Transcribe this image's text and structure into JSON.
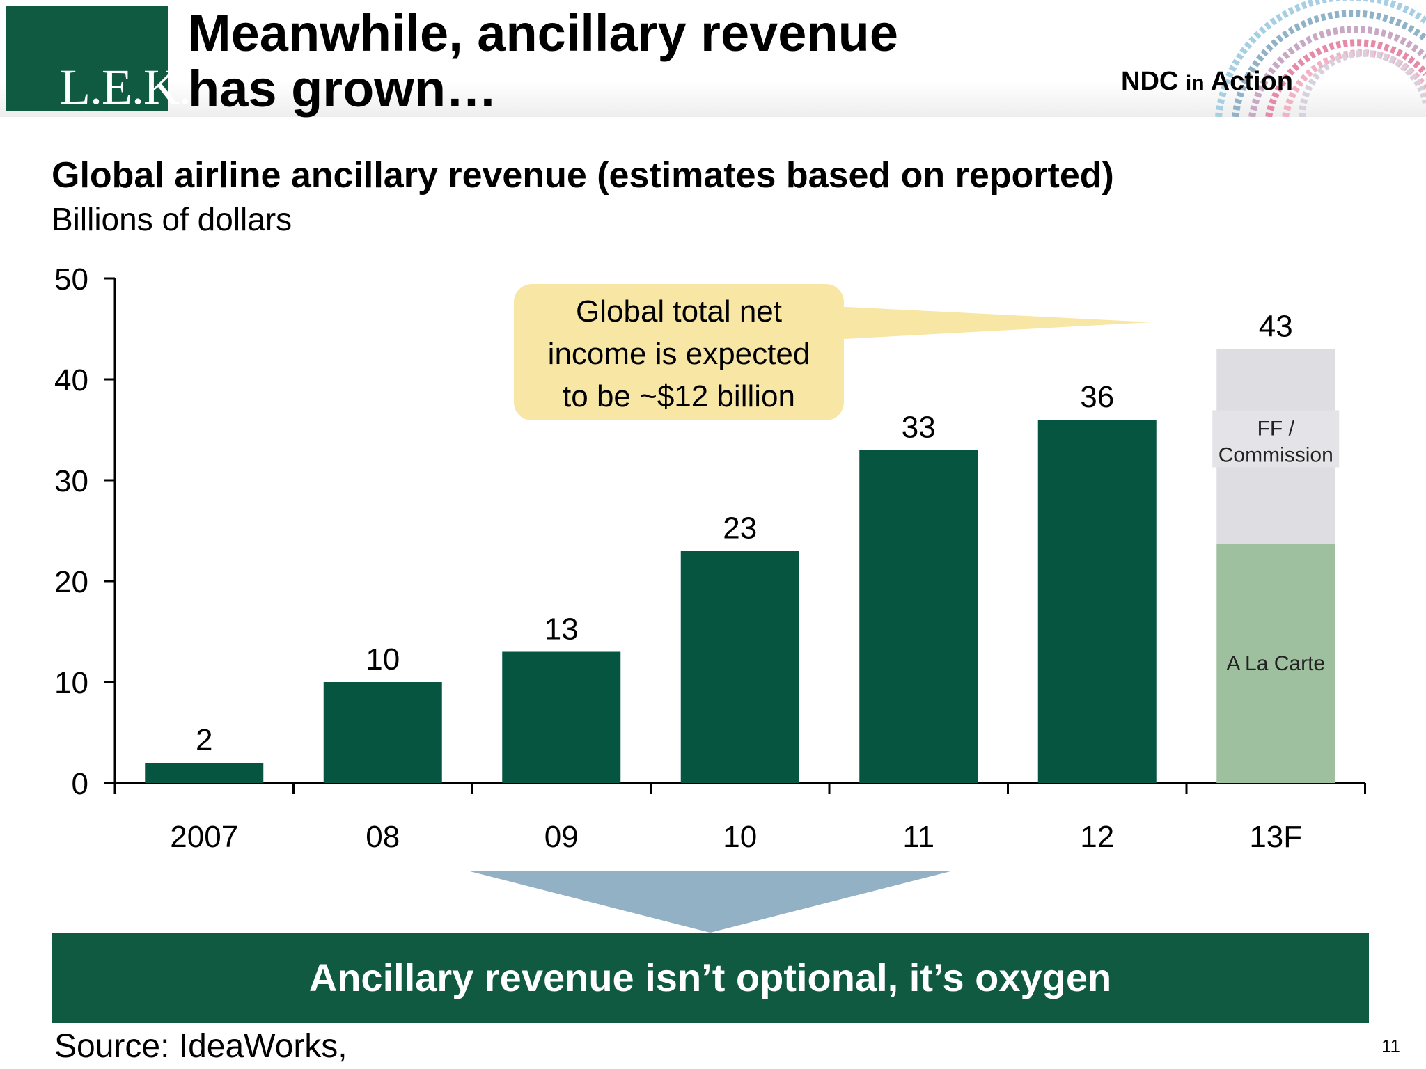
{
  "header": {
    "logo": "L.E.K.",
    "title_line1": "Meanwhile, ancillary revenue",
    "title_line2": "has grown…",
    "ndc_1": "NDC",
    "ndc_2": "in",
    "ndc_3": "Action"
  },
  "chart_data": {
    "type": "bar",
    "title": "Global airline ancillary revenue (estimates based on reported)",
    "subtitle": "Billions of dollars",
    "categories": [
      "2007",
      "08",
      "09",
      "10",
      "11",
      "12",
      "13F"
    ],
    "values": [
      2,
      10,
      13,
      23,
      33,
      36,
      43
    ],
    "value_labels": [
      "2",
      "10",
      "13",
      "23",
      "33",
      "36",
      "43"
    ],
    "last_bar_stack": [
      {
        "name": "A La Carte",
        "value": 23.7,
        "color": "#9fc09f"
      },
      {
        "name": "FF / Commission",
        "value": 19.3,
        "color": "#dedde2"
      }
    ],
    "ylim": [
      0,
      50
    ],
    "yticks": [
      "0",
      "10",
      "20",
      "30",
      "40",
      "50"
    ],
    "bar_color": "#055541",
    "grid": false,
    "callout": [
      "Global total net",
      "income is expected",
      "to be ~$12 billion"
    ],
    "callout_color": "#f8e6a5"
  },
  "banner": "Ancillary revenue isn’t optional, it’s oxygen",
  "source": "Source: IdeaWorks,",
  "page_number": "11"
}
